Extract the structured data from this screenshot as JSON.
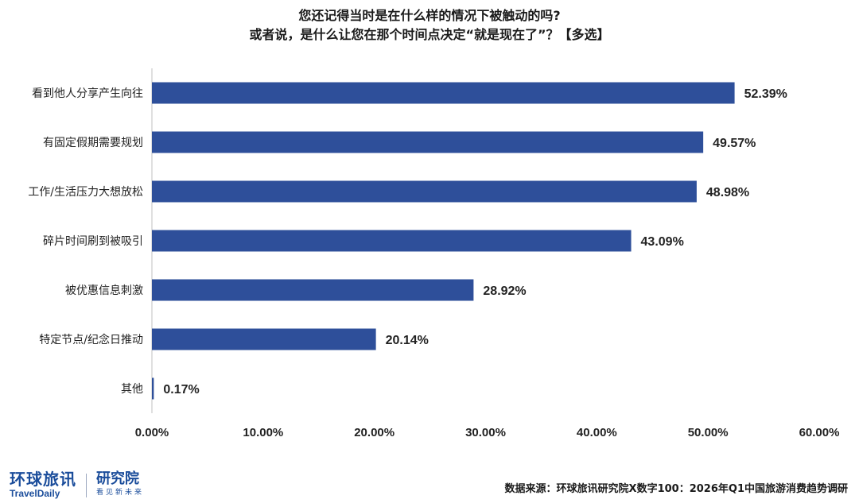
{
  "chart_data": {
    "type": "bar",
    "orientation": "horizontal",
    "title_line1": "您还记得当时是在什么样的情况下被触动的吗?",
    "title_line2": "或者说，是什么让您在那个时间点决定“就是现在了”？【多选】",
    "categories": [
      "看到他人分享产生向往",
      "有固定假期需要规划",
      "工作/生活压力大想放松",
      "碎片时间刷到被吸引",
      "被优惠信息刺激",
      "特定节点/纪念日推动",
      "其他"
    ],
    "values": [
      52.39,
      49.57,
      48.98,
      43.09,
      28.92,
      20.14,
      0.17
    ],
    "value_labels": [
      "52.39%",
      "49.57%",
      "48.98%",
      "43.09%",
      "28.92%",
      "20.14%",
      "0.17%"
    ],
    "xlim": [
      0,
      60
    ],
    "xticks": [
      0,
      10,
      20,
      30,
      40,
      50,
      60
    ],
    "xtick_labels": [
      "0.00%",
      "10.00%",
      "20.00%",
      "30.00%",
      "40.00%",
      "50.00%",
      "60.00%"
    ],
    "grid": false,
    "bar_color": "#2e4f9a"
  },
  "logo": {
    "brand_cn": "环球旅讯",
    "brand_en": "TravelDaily",
    "sub_cn": "研究院",
    "sub_tagline": "看见新未来"
  },
  "source_text": "数据来源：环球旅讯研究院X数字100：2026年Q1中国旅游消费趋势调研"
}
